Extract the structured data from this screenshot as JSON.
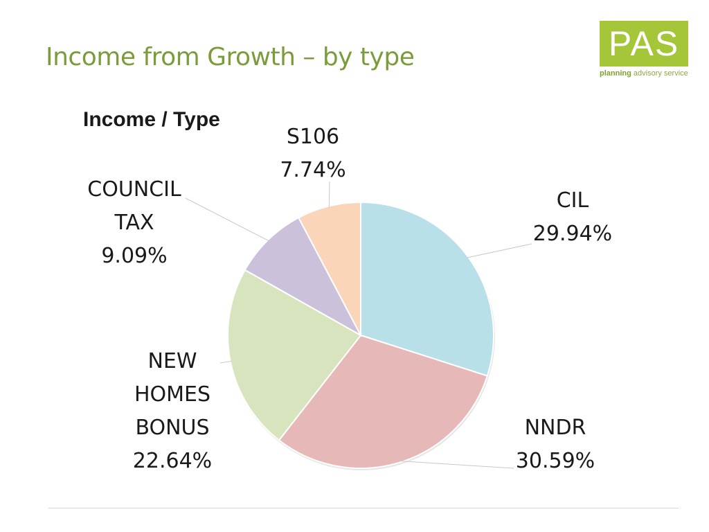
{
  "slide_title": "Income from Growth – by type",
  "logo": {
    "text": "PAS",
    "tagline_bold": "planning",
    "tagline_rest": "advisory service"
  },
  "colors": {
    "title": "#7b9c3a",
    "logo_bg": "#a6c63a"
  },
  "chart_data": {
    "type": "pie",
    "title": "Income / Type",
    "slices": [
      {
        "lines": [
          "CIL"
        ],
        "pct_label": "29.94%",
        "value": 29.94,
        "color": "#b9dfe8"
      },
      {
        "lines": [
          "NNDR"
        ],
        "pct_label": "30.59%",
        "value": 30.59,
        "color": "#e7b8b8"
      },
      {
        "lines": [
          "NEW",
          "HOMES",
          "BONUS"
        ],
        "pct_label": "22.64%",
        "value": 22.64,
        "color": "#d8e4bd"
      },
      {
        "lines": [
          "COUNCIL",
          "TAX"
        ],
        "pct_label": "9.09%",
        "value": 9.09,
        "color": "#ccc1da"
      },
      {
        "lines": [
          "S106"
        ],
        "pct_label": "7.74%",
        "value": 7.74,
        "color": "#fad5b9"
      }
    ]
  }
}
